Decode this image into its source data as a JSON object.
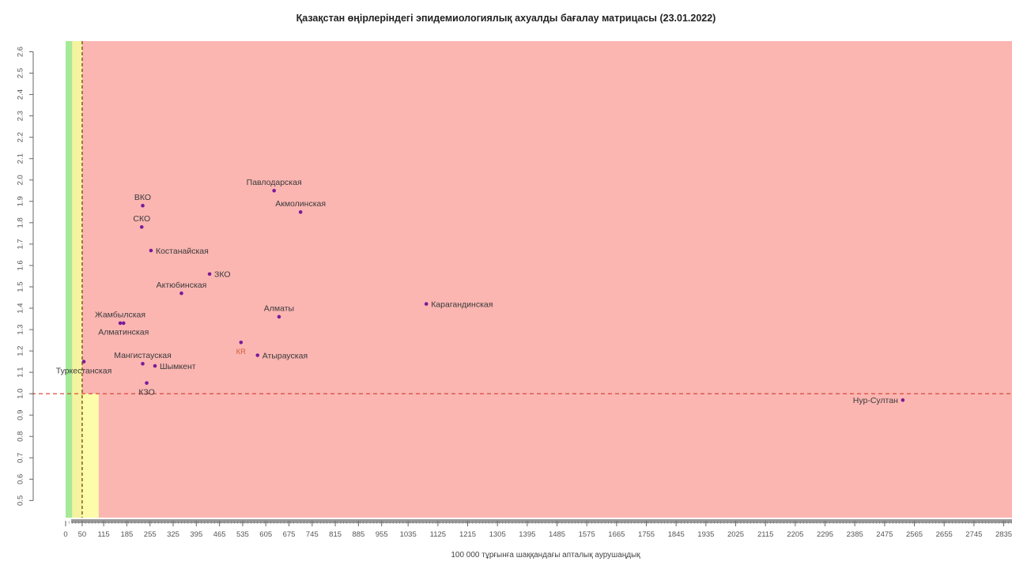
{
  "chart_data": {
    "type": "scatter",
    "title": "Қазақстан өңірлеріндегі эпидемиологиялық ахуалды бағалау матрицасы  (23.01.2022)",
    "xlabel": "100 000 тұрғынға шаққандағы апталық аурушаңдық",
    "ylabel": "",
    "xlim": [
      0,
      2860
    ],
    "ylim": [
      0.42,
      2.65
    ],
    "x_ticks": [
      0,
      50,
      115,
      185,
      255,
      325,
      395,
      465,
      535,
      605,
      675,
      745,
      815,
      885,
      955,
      1035,
      1125,
      1215,
      1305,
      1395,
      1485,
      1575,
      1665,
      1755,
      1845,
      1935,
      2025,
      2115,
      2205,
      2295,
      2385,
      2475,
      2565,
      2655,
      2745,
      2835
    ],
    "y_ticks": [
      0.5,
      0.6,
      0.7,
      0.8,
      0.9,
      1.0,
      1.1,
      1.2,
      1.3,
      1.4,
      1.5,
      1.6,
      1.7,
      1.8,
      1.9,
      2.0,
      2.1,
      2.2,
      2.3,
      2.4,
      2.5,
      2.6
    ],
    "zones": [
      {
        "x0": 0,
        "x1": 20,
        "color": "#a6ea98"
      },
      {
        "x0": 20,
        "x1": 50,
        "color": "#f5f3a0"
      },
      {
        "x0": 50,
        "x1": 2860,
        "color": "#fbb6b2"
      }
    ],
    "lower_yellow_band": {
      "x0": 50,
      "x1": 100,
      "y0": 0.42,
      "y1": 1.0,
      "color": "#fdfcab"
    },
    "reference_lines": {
      "x": 50,
      "y": 1.0,
      "color": "#d23a2a"
    },
    "points": [
      {
        "label": "Павлодарская",
        "x": 630,
        "y": 1.95
      },
      {
        "label": "Акмолинская",
        "x": 710,
        "y": 1.85
      },
      {
        "label": "ВКО",
        "x": 233,
        "y": 1.88
      },
      {
        "label": "СКО",
        "x": 230,
        "y": 1.78
      },
      {
        "label": "Костанайская",
        "x": 258,
        "y": 1.67
      },
      {
        "label": "ЗКО",
        "x": 435,
        "y": 1.56
      },
      {
        "label": "Актюбинская",
        "x": 350,
        "y": 1.47
      },
      {
        "label": "Жамбылская",
        "x": 165,
        "y": 1.33
      },
      {
        "label": "Алматинская",
        "x": 175,
        "y": 1.33
      },
      {
        "label": "Алматы",
        "x": 645,
        "y": 1.36
      },
      {
        "label": "Карагандинская",
        "x": 1090,
        "y": 1.42
      },
      {
        "label": "Мангистауская",
        "x": 233,
        "y": 1.14
      },
      {
        "label": "Шымкент",
        "x": 270,
        "y": 1.13
      },
      {
        "label": "Туркестанская",
        "x": 55,
        "y": 1.15
      },
      {
        "label": "Атырауская",
        "x": 580,
        "y": 1.18
      },
      {
        "label": "КЗО",
        "x": 245,
        "y": 1.05
      },
      {
        "label": "Нур-Султан",
        "x": 2530,
        "y": 0.97
      },
      {
        "label": "КR",
        "x": 530,
        "y": 1.24
      }
    ]
  }
}
